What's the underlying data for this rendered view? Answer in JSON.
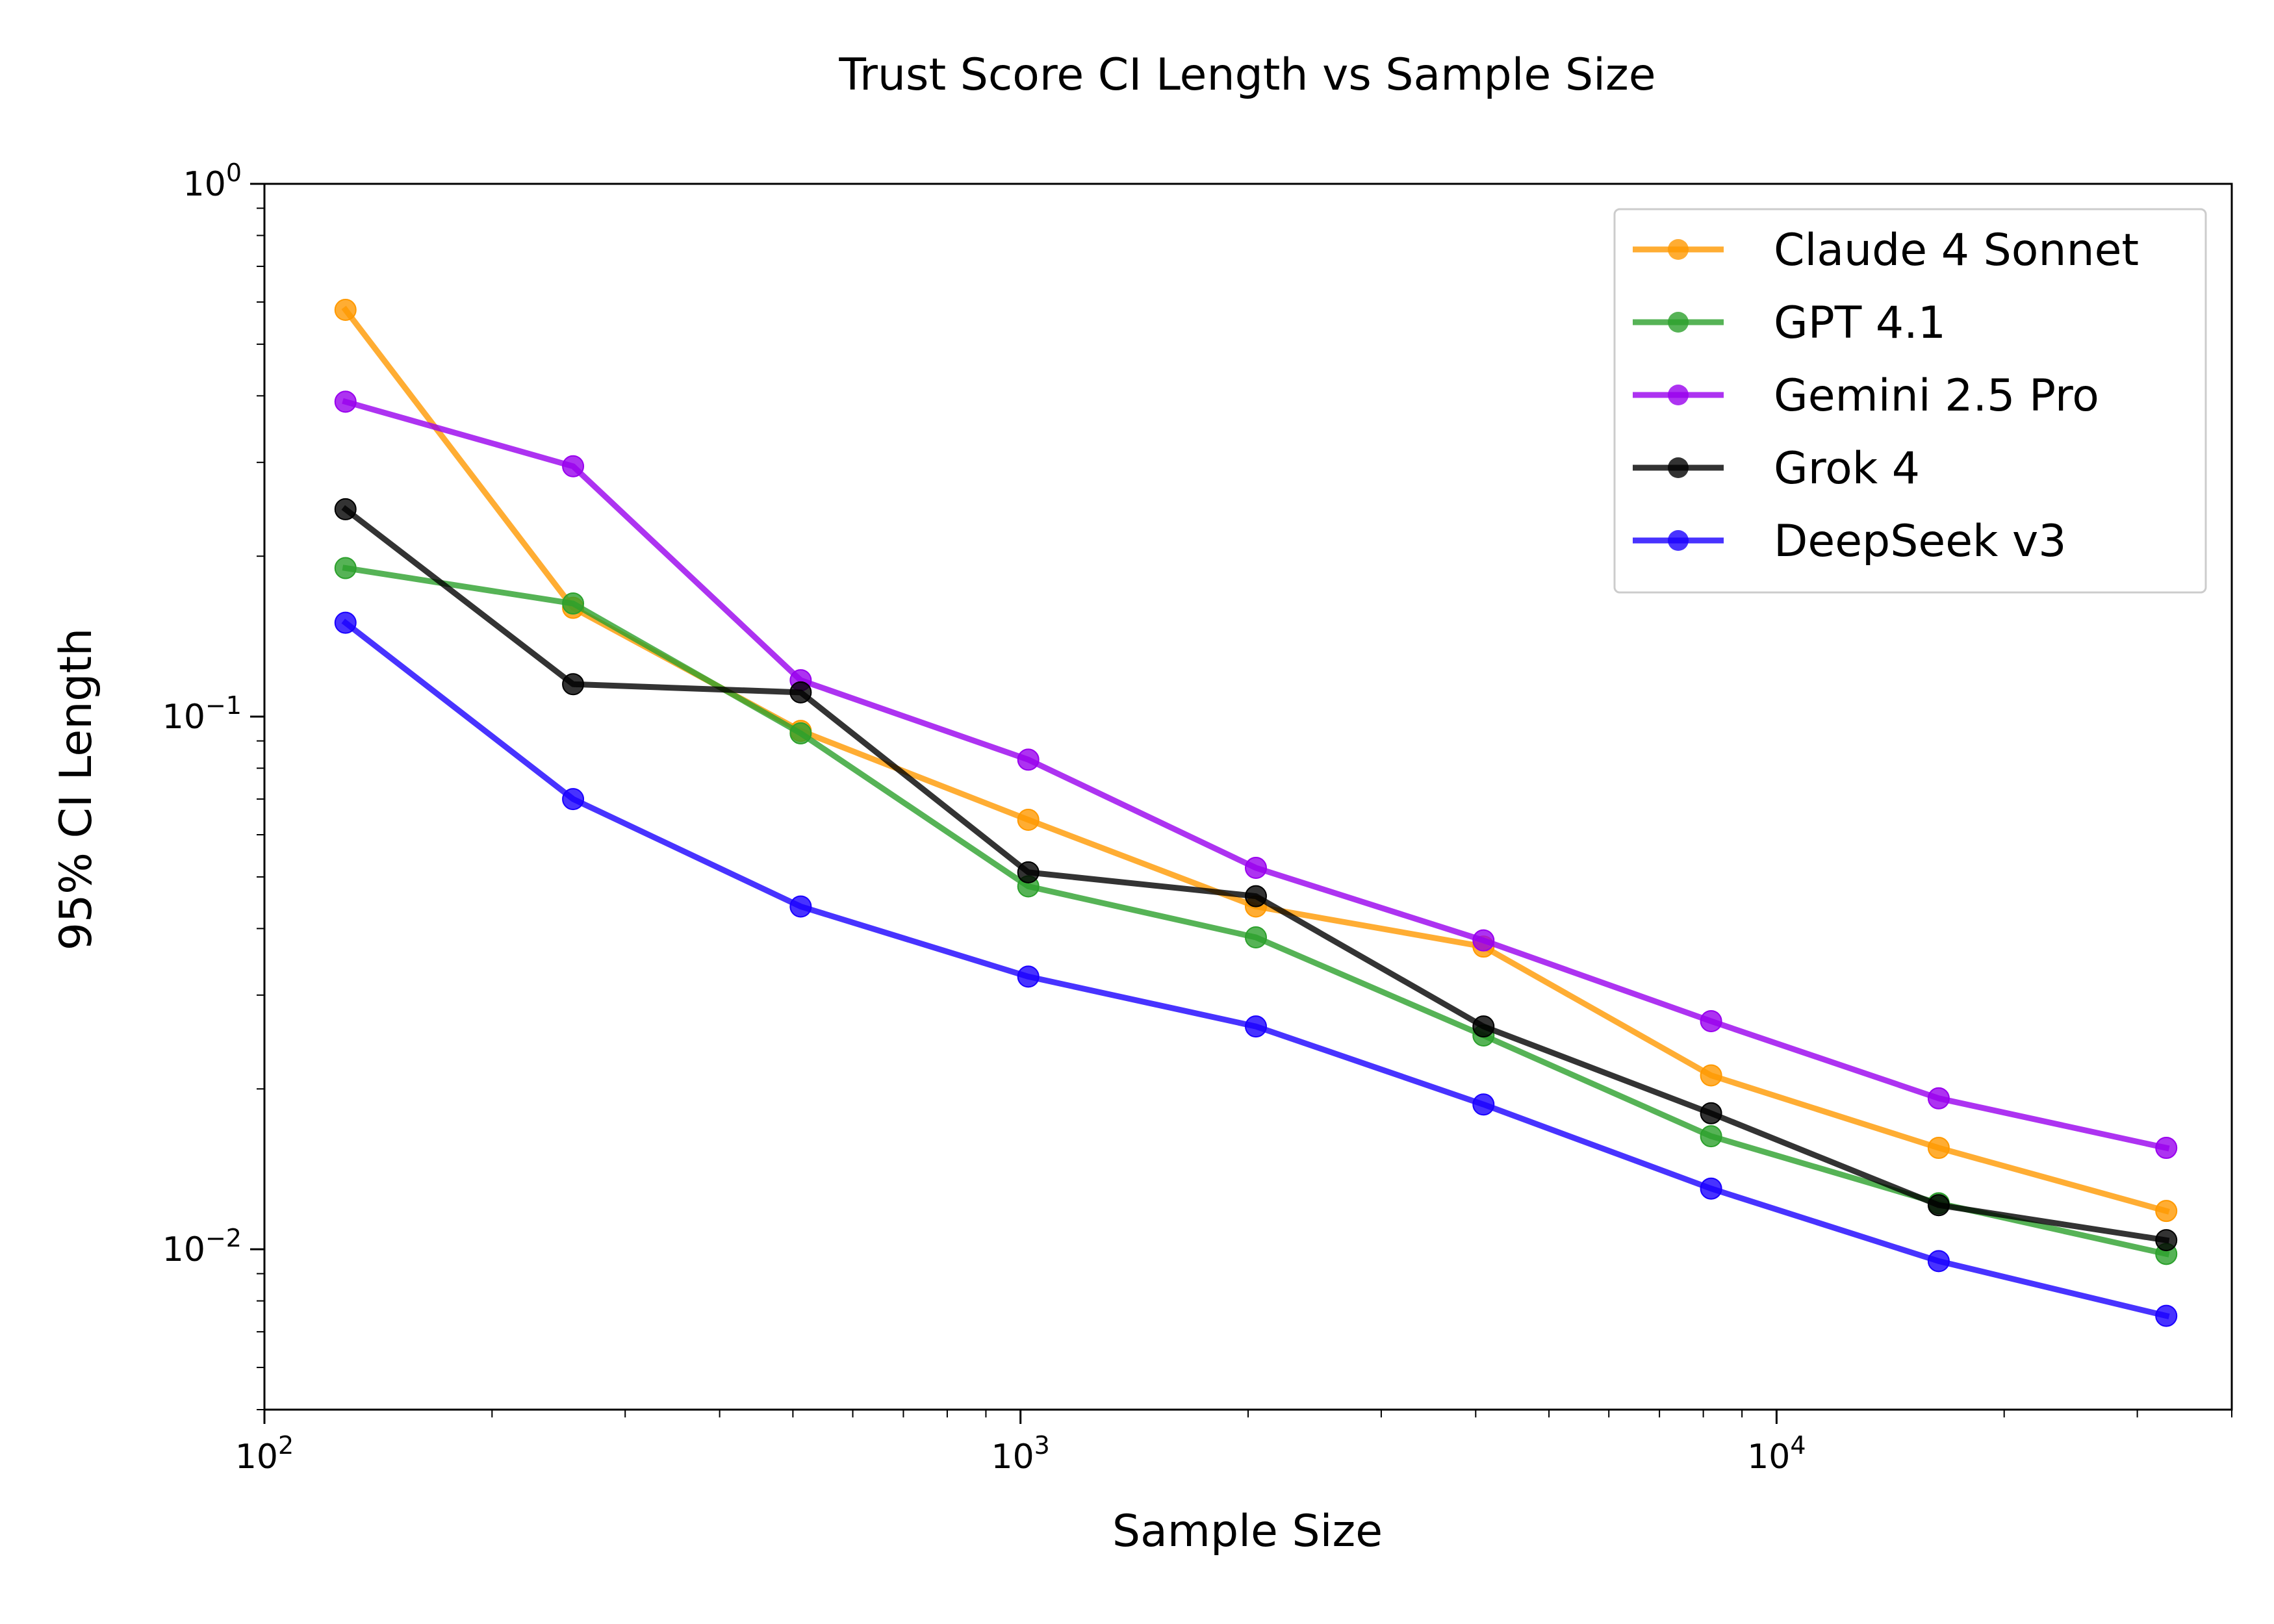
{
  "chart_data": {
    "type": "line",
    "title": "Trust Score CI Length vs Sample Size",
    "xlabel": "Sample Size",
    "ylabel": "95% CI Length",
    "xscale": "log",
    "yscale": "log",
    "xlim": [
      100,
      40000
    ],
    "ylim": [
      0.005,
      1
    ],
    "grid": false,
    "legend_position": "top-right",
    "x": [
      128,
      256,
      512,
      1024,
      2048,
      4096,
      8192,
      16384,
      32768
    ],
    "x_ticks": [
      {
        "base": "10",
        "exp": "2",
        "value": 100
      },
      {
        "base": "10",
        "exp": "3",
        "value": 1000
      },
      {
        "base": "10",
        "exp": "4",
        "value": 10000
      }
    ],
    "y_ticks": [
      {
        "base": "10",
        "exp": "0",
        "value": 1
      },
      {
        "base": "10",
        "exp": "−1",
        "value": 0.1
      },
      {
        "base": "10",
        "exp": "−2",
        "value": 0.01
      }
    ],
    "series": [
      {
        "name": "Claude 4 Sonnet",
        "color": "#ff9900",
        "values": [
          0.58,
          0.16,
          0.094,
          0.064,
          0.044,
          0.037,
          0.0212,
          0.0155,
          0.0118
        ]
      },
      {
        "name": "GPT 4.1",
        "color": "#2ca02c",
        "values": [
          0.19,
          0.163,
          0.093,
          0.048,
          0.0385,
          0.0252,
          0.0163,
          0.0122,
          0.0098
        ]
      },
      {
        "name": "Gemini 2.5 Pro",
        "color": "#9900ee",
        "values": [
          0.39,
          0.295,
          0.117,
          0.083,
          0.052,
          0.038,
          0.0268,
          0.0192,
          0.0155
        ]
      },
      {
        "name": "Grok 4",
        "color": "#000000",
        "values": [
          0.245,
          0.115,
          0.111,
          0.051,
          0.046,
          0.0262,
          0.018,
          0.0121,
          0.0104
        ]
      },
      {
        "name": "DeepSeek v3",
        "color": "#1a00ff",
        "values": [
          0.15,
          0.07,
          0.044,
          0.0325,
          0.0262,
          0.0187,
          0.013,
          0.0095,
          0.0075
        ]
      }
    ]
  }
}
